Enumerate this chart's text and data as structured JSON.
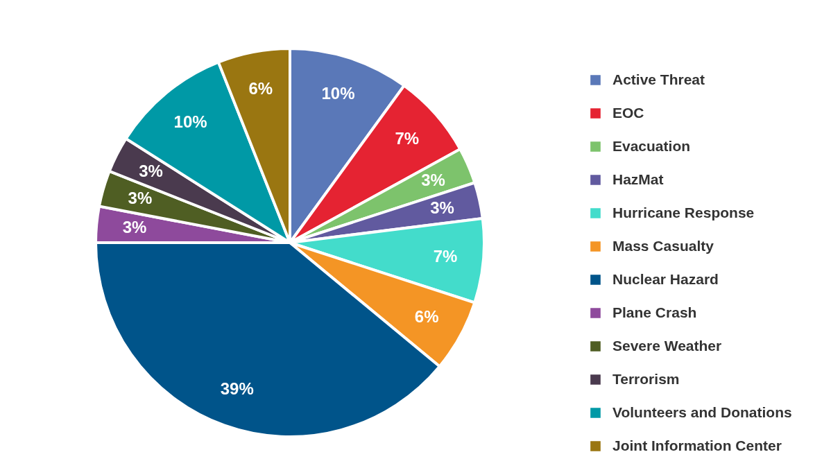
{
  "chart_data": {
    "type": "pie",
    "categories": [
      "Active Threat",
      "EOC",
      "Evacuation",
      "HazMat",
      "Hurricane Response",
      "Mass Casualty",
      "Nuclear Hazard",
      "Plane Crash",
      "Severe Weather",
      "Terrorism",
      "Volunteers and Donations",
      "Joint Information Center"
    ],
    "values": [
      10,
      7,
      3,
      3,
      7,
      6,
      39,
      3,
      3,
      3,
      10,
      6
    ],
    "colors": [
      "#5a78b8",
      "#e52332",
      "#7dc36c",
      "#615a9f",
      "#43dccb",
      "#f49525",
      "#00548a",
      "#8e4a9c",
      "#4f5e23",
      "#4a3a4e",
      "#0099a6",
      "#9a7611"
    ],
    "value_labels": [
      "10%",
      "7%",
      "3%",
      "3%",
      "7%",
      "6%",
      "39%",
      "3%",
      "3%",
      "3%",
      "10%",
      "6%"
    ],
    "legend": "right"
  }
}
